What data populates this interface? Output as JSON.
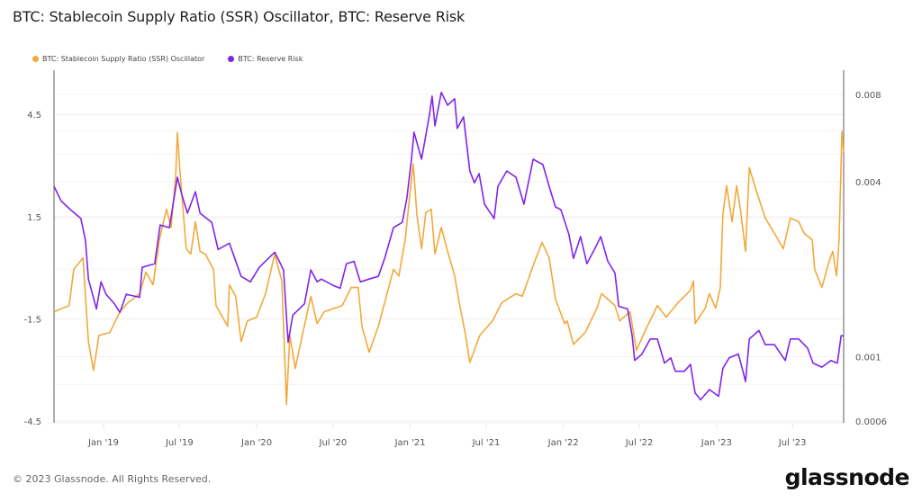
{
  "title": "BTC: Stablecoin Supply Ratio (SSR) Oscillator, BTC: Reserve Risk",
  "footer": "© 2023 Glassnode. All Rights Reserved.",
  "logo": "glassnode",
  "chart_data": {
    "type": "line",
    "title": "BTC: Stablecoin Supply Ratio (SSR) Oscillator, BTC: Reserve Risk",
    "legend_position": "top-left",
    "grid": true,
    "x_range": [
      "2018-09-05",
      "2023-10-31"
    ],
    "x_ticks": [
      {
        "date": "2019-01-01",
        "label": "Jan '19"
      },
      {
        "date": "2019-07-01",
        "label": "Jul '19"
      },
      {
        "date": "2020-01-01",
        "label": "Jan '20"
      },
      {
        "date": "2020-07-01",
        "label": "Jul '20"
      },
      {
        "date": "2021-01-01",
        "label": "Jan '21"
      },
      {
        "date": "2021-07-01",
        "label": "Jul '21"
      },
      {
        "date": "2022-01-01",
        "label": "Jan '22"
      },
      {
        "date": "2022-07-01",
        "label": "Jul '22"
      },
      {
        "date": "2023-01-01",
        "label": "Jan '23"
      },
      {
        "date": "2023-07-01",
        "label": "Jul '23"
      }
    ],
    "y_left": {
      "scale": "linear",
      "ylim": [
        -4.5,
        5.8
      ],
      "ticks": [
        {
          "v": 4.5,
          "label": "4.5"
        },
        {
          "v": 1.5,
          "label": "1.5"
        },
        {
          "v": -1.5,
          "label": "-1.5"
        },
        {
          "v": -4.5,
          "label": "-4.5"
        }
      ]
    },
    "y_right": {
      "scale": "log",
      "ylim": [
        0.0006,
        0.0097
      ],
      "ticks": [
        {
          "v": 0.008,
          "label": "0.008"
        },
        {
          "v": 0.004,
          "label": "0.004"
        },
        {
          "v": 0.001,
          "label": "0.001"
        },
        {
          "v": 0.0006,
          "label": "0.0006"
        }
      ]
    },
    "series": [
      {
        "name": "BTC: Stablecoin Supply Ratio (SSR) Oscillator",
        "axis": "left",
        "color": "#f2a93b",
        "points": [
          [
            "2018-09-05",
            -1.29
          ],
          [
            "2018-10-11",
            -1.11
          ],
          [
            "2018-10-22",
            -0.05
          ],
          [
            "2018-11-13",
            0.29
          ],
          [
            "2018-11-26",
            -2.17
          ],
          [
            "2018-12-08",
            -3.01
          ],
          [
            "2018-12-21",
            -1.98
          ],
          [
            "2019-01-16",
            -1.9
          ],
          [
            "2019-02-09",
            -1.29
          ],
          [
            "2019-02-28",
            -1.03
          ],
          [
            "2019-03-28",
            -0.76
          ],
          [
            "2019-04-12",
            -0.13
          ],
          [
            "2019-04-29",
            -0.5
          ],
          [
            "2019-05-14",
            0.82
          ],
          [
            "2019-05-31",
            1.72
          ],
          [
            "2019-06-11",
            1.19
          ],
          [
            "2019-06-22",
            2.67
          ],
          [
            "2019-06-26",
            3.97
          ],
          [
            "2019-07-02",
            2.86
          ],
          [
            "2019-07-17",
            0.56
          ],
          [
            "2019-07-28",
            0.4
          ],
          [
            "2019-08-08",
            1.35
          ],
          [
            "2019-08-19",
            0.48
          ],
          [
            "2019-09-01",
            0.4
          ],
          [
            "2019-09-20",
            -0.05
          ],
          [
            "2019-09-26",
            -1.11
          ],
          [
            "2019-10-24",
            -1.72
          ],
          [
            "2019-10-28",
            -0.5
          ],
          [
            "2019-11-12",
            -0.84
          ],
          [
            "2019-11-25",
            -2.17
          ],
          [
            "2019-12-10",
            -1.56
          ],
          [
            "2020-01-01",
            -1.45
          ],
          [
            "2020-01-22",
            -0.76
          ],
          [
            "2020-02-13",
            0.4
          ],
          [
            "2020-03-01",
            -0.39
          ],
          [
            "2020-03-12",
            -4.02
          ],
          [
            "2020-03-20",
            -1.98
          ],
          [
            "2020-04-02",
            -2.96
          ],
          [
            "2020-04-17",
            -2.09
          ],
          [
            "2020-05-09",
            -0.84
          ],
          [
            "2020-05-24",
            -1.64
          ],
          [
            "2020-06-10",
            -1.29
          ],
          [
            "2020-07-23",
            -1.11
          ],
          [
            "2020-08-13",
            -0.58
          ],
          [
            "2020-08-30",
            -0.58
          ],
          [
            "2020-09-08",
            -1.72
          ],
          [
            "2020-09-25",
            -2.48
          ],
          [
            "2020-10-17",
            -1.72
          ],
          [
            "2020-11-01",
            -1.03
          ],
          [
            "2020-11-22",
            -0.05
          ],
          [
            "2020-12-05",
            -0.24
          ],
          [
            "2020-12-20",
            0.82
          ],
          [
            "2020-12-31",
            2.15
          ],
          [
            "2021-01-08",
            3.05
          ],
          [
            "2021-01-17",
            1.54
          ],
          [
            "2021-01-28",
            0.56
          ],
          [
            "2021-02-07",
            1.62
          ],
          [
            "2021-02-20",
            1.72
          ],
          [
            "2021-03-01",
            0.4
          ],
          [
            "2021-03-16",
            1.19
          ],
          [
            "2021-03-31",
            0.48
          ],
          [
            "2021-04-17",
            -0.24
          ],
          [
            "2021-04-28",
            -1.03
          ],
          [
            "2021-05-13",
            -1.98
          ],
          [
            "2021-05-23",
            -2.78
          ],
          [
            "2021-06-16",
            -1.98
          ],
          [
            "2021-07-16",
            -1.56
          ],
          [
            "2021-08-07",
            -1.03
          ],
          [
            "2021-09-10",
            -0.76
          ],
          [
            "2021-09-25",
            -0.84
          ],
          [
            "2021-10-23",
            0.13
          ],
          [
            "2021-11-11",
            0.74
          ],
          [
            "2021-11-28",
            0.29
          ],
          [
            "2021-12-13",
            -0.92
          ],
          [
            "2022-01-04",
            -1.64
          ],
          [
            "2022-01-10",
            -1.56
          ],
          [
            "2022-01-25",
            -2.25
          ],
          [
            "2022-02-22",
            -1.9
          ],
          [
            "2022-03-22",
            -1.19
          ],
          [
            "2022-04-02",
            -0.76
          ],
          [
            "2022-05-04",
            -1.11
          ],
          [
            "2022-05-15",
            -1.56
          ],
          [
            "2022-06-09",
            -1.29
          ],
          [
            "2022-06-24",
            -2.43
          ],
          [
            "2022-07-16",
            -1.82
          ],
          [
            "2022-08-13",
            -1.11
          ],
          [
            "2022-09-03",
            -1.45
          ],
          [
            "2022-10-01",
            -1.03
          ],
          [
            "2022-10-31",
            -0.66
          ],
          [
            "2022-11-07",
            -0.39
          ],
          [
            "2022-11-11",
            -1.64
          ],
          [
            "2022-12-05",
            -1.19
          ],
          [
            "2022-12-15",
            -0.76
          ],
          [
            "2022-12-30",
            -1.19
          ],
          [
            "2023-01-10",
            -0.58
          ],
          [
            "2023-01-16",
            1.54
          ],
          [
            "2023-01-25",
            2.41
          ],
          [
            "2023-02-07",
            1.35
          ],
          [
            "2023-02-18",
            2.41
          ],
          [
            "2023-02-28",
            1.62
          ],
          [
            "2023-03-11",
            0.48
          ],
          [
            "2023-03-20",
            2.94
          ],
          [
            "2023-04-06",
            2.25
          ],
          [
            "2023-04-27",
            1.46
          ],
          [
            "2023-05-19",
            1.01
          ],
          [
            "2023-06-09",
            0.56
          ],
          [
            "2023-06-26",
            1.46
          ],
          [
            "2023-07-16",
            1.35
          ],
          [
            "2023-07-29",
            1.01
          ],
          [
            "2023-08-17",
            0.82
          ],
          [
            "2023-08-23",
            -0.05
          ],
          [
            "2023-09-09",
            -0.58
          ],
          [
            "2023-09-25",
            0.13
          ],
          [
            "2023-10-05",
            0.48
          ],
          [
            "2023-10-14",
            -0.24
          ],
          [
            "2023-10-20",
            0.82
          ],
          [
            "2023-10-27",
            4.0
          ],
          [
            "2023-10-31",
            3.39
          ]
        ]
      },
      {
        "name": "BTC: Reserve Risk",
        "axis": "right",
        "color": "#8025e8",
        "points": [
          [
            "2018-09-05",
            0.00386
          ],
          [
            "2018-09-22",
            0.00344
          ],
          [
            "2018-10-14",
            0.00321
          ],
          [
            "2018-11-08",
            0.00299
          ],
          [
            "2018-11-19",
            0.00252
          ],
          [
            "2018-11-26",
            0.00185
          ],
          [
            "2018-12-15",
            0.00146
          ],
          [
            "2018-12-26",
            0.00181
          ],
          [
            "2019-01-07",
            0.00164
          ],
          [
            "2019-01-27",
            0.00152
          ],
          [
            "2019-02-09",
            0.00142
          ],
          [
            "2019-02-24",
            0.00164
          ],
          [
            "2019-03-28",
            0.0016
          ],
          [
            "2019-04-03",
            0.00203
          ],
          [
            "2019-05-03",
            0.00209
          ],
          [
            "2019-05-16",
            0.00284
          ],
          [
            "2019-06-07",
            0.00278
          ],
          [
            "2019-06-26",
            0.00415
          ],
          [
            "2019-07-07",
            0.0036
          ],
          [
            "2019-07-20",
            0.00312
          ],
          [
            "2019-08-08",
            0.0037
          ],
          [
            "2019-08-19",
            0.00312
          ],
          [
            "2019-09-16",
            0.0029
          ],
          [
            "2019-10-01",
            0.00234
          ],
          [
            "2019-10-28",
            0.00246
          ],
          [
            "2019-11-25",
            0.00189
          ],
          [
            "2019-12-17",
            0.00181
          ],
          [
            "2020-01-07",
            0.00203
          ],
          [
            "2020-02-13",
            0.00229
          ],
          [
            "2020-03-05",
            0.00199
          ],
          [
            "2020-03-16",
            0.00112
          ],
          [
            "2020-03-27",
            0.00139
          ],
          [
            "2020-04-24",
            0.00152
          ],
          [
            "2020-05-09",
            0.00199
          ],
          [
            "2020-05-24",
            0.00181
          ],
          [
            "2020-06-03",
            0.00185
          ],
          [
            "2020-07-01",
            0.00176
          ],
          [
            "2020-07-18",
            0.00172
          ],
          [
            "2020-08-02",
            0.00209
          ],
          [
            "2020-08-20",
            0.00213
          ],
          [
            "2020-09-04",
            0.00181
          ],
          [
            "2020-09-25",
            0.00185
          ],
          [
            "2020-10-17",
            0.00189
          ],
          [
            "2020-11-01",
            0.00218
          ],
          [
            "2020-11-22",
            0.00278
          ],
          [
            "2020-12-13",
            0.0029
          ],
          [
            "2020-12-24",
            0.00352
          ],
          [
            "2021-01-04",
            0.00479
          ],
          [
            "2021-01-10",
            0.00593
          ],
          [
            "2021-01-28",
            0.00479
          ],
          [
            "2021-02-16",
            0.00684
          ],
          [
            "2021-02-22",
            0.0079
          ],
          [
            "2021-03-01",
            0.00624
          ],
          [
            "2021-03-16",
            0.00813
          ],
          [
            "2021-03-31",
            0.00735
          ],
          [
            "2021-04-17",
            0.00773
          ],
          [
            "2021-04-23",
            0.00611
          ],
          [
            "2021-05-08",
            0.0067
          ],
          [
            "2021-05-23",
            0.00436
          ],
          [
            "2021-06-03",
            0.00397
          ],
          [
            "2021-06-14",
            0.00427
          ],
          [
            "2021-06-27",
            0.00335
          ],
          [
            "2021-07-20",
            0.00299
          ],
          [
            "2021-07-29",
            0.00386
          ],
          [
            "2021-08-19",
            0.00436
          ],
          [
            "2021-09-10",
            0.00415
          ],
          [
            "2021-09-29",
            0.00335
          ],
          [
            "2021-10-21",
            0.00479
          ],
          [
            "2021-11-13",
            0.00459
          ],
          [
            "2021-11-28",
            0.00386
          ],
          [
            "2021-12-13",
            0.00328
          ],
          [
            "2021-12-26",
            0.00321
          ],
          [
            "2022-01-14",
            0.00264
          ],
          [
            "2022-01-25",
            0.00218
          ],
          [
            "2022-02-11",
            0.00259
          ],
          [
            "2022-02-26",
            0.00209
          ],
          [
            "2022-03-16",
            0.00234
          ],
          [
            "2022-03-31",
            0.00259
          ],
          [
            "2022-04-17",
            0.00213
          ],
          [
            "2022-05-04",
            0.00194
          ],
          [
            "2022-05-13",
            0.00149
          ],
          [
            "2022-06-03",
            0.00146
          ],
          [
            "2022-06-14",
            0.00118
          ],
          [
            "2022-06-20",
            0.00097
          ],
          [
            "2022-07-07",
            0.00102
          ],
          [
            "2022-07-27",
            0.00115
          ],
          [
            "2022-08-13",
            0.00115
          ],
          [
            "2022-08-30",
            0.00095
          ],
          [
            "2022-09-14",
            0.00099
          ],
          [
            "2022-09-25",
            0.00089
          ],
          [
            "2022-10-16",
            0.00089
          ],
          [
            "2022-10-31",
            0.00094
          ],
          [
            "2022-11-11",
            0.00075
          ],
          [
            "2022-11-24",
            0.00071
          ],
          [
            "2022-12-15",
            0.00077
          ],
          [
            "2023-01-06",
            0.00073
          ],
          [
            "2023-01-16",
            0.00091
          ],
          [
            "2023-01-31",
            0.00099
          ],
          [
            "2023-02-22",
            0.00102
          ],
          [
            "2023-03-05",
            0.00089
          ],
          [
            "2023-03-11",
            0.00082
          ],
          [
            "2023-03-20",
            0.00115
          ],
          [
            "2023-04-12",
            0.00123
          ],
          [
            "2023-04-27",
            0.0011
          ],
          [
            "2023-05-19",
            0.0011
          ],
          [
            "2023-06-14",
            0.00097
          ],
          [
            "2023-06-26",
            0.00115
          ],
          [
            "2023-07-16",
            0.00115
          ],
          [
            "2023-08-06",
            0.00107
          ],
          [
            "2023-08-19",
            0.00095
          ],
          [
            "2023-09-09",
            0.00092
          ],
          [
            "2023-10-01",
            0.00097
          ],
          [
            "2023-10-16",
            0.00095
          ],
          [
            "2023-10-25",
            0.00118
          ],
          [
            "2023-10-31",
            0.00118
          ]
        ]
      }
    ]
  }
}
